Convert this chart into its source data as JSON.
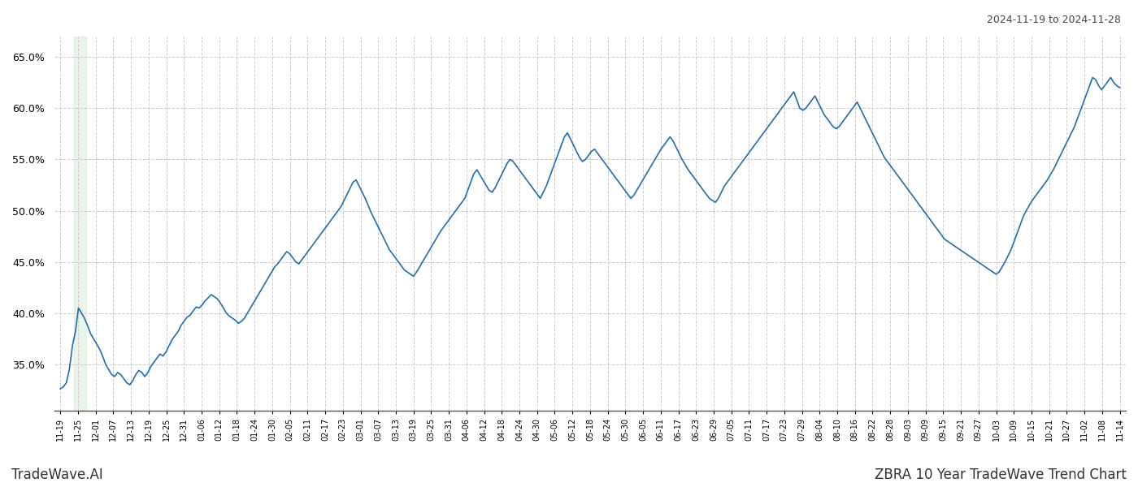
{
  "title_right": "2024-11-19 to 2024-11-28",
  "footer_left": "TradeWave.AI",
  "footer_right": "ZBRA 10 Year TradeWave Trend Chart",
  "line_color": "#1f6eb5",
  "line_width": 1.2,
  "highlight_color": "#c8e6c9",
  "highlight_alpha": 0.4,
  "background_color": "#ffffff",
  "grid_color": "#cccccc",
  "grid_style": "--",
  "ylim": [
    0.305,
    0.67
  ],
  "yticks": [
    0.35,
    0.4,
    0.45,
    0.5,
    0.55,
    0.6,
    0.65
  ],
  "xtick_labels": [
    "11-19",
    "11-25",
    "12-01",
    "12-07",
    "12-13",
    "12-19",
    "12-25",
    "12-31",
    "01-06",
    "01-12",
    "01-18",
    "01-24",
    "01-30",
    "02-05",
    "02-11",
    "02-17",
    "02-23",
    "03-01",
    "03-07",
    "03-13",
    "03-19",
    "03-25",
    "03-31",
    "04-06",
    "04-12",
    "04-18",
    "04-24",
    "04-30",
    "05-06",
    "05-12",
    "05-18",
    "05-24",
    "05-30",
    "06-05",
    "06-11",
    "06-17",
    "06-23",
    "06-29",
    "07-05",
    "07-11",
    "07-17",
    "07-23",
    "07-29",
    "08-04",
    "08-10",
    "08-16",
    "08-22",
    "08-28",
    "09-03",
    "09-09",
    "09-15",
    "09-21",
    "09-27",
    "10-03",
    "10-09",
    "10-15",
    "10-21",
    "10-27",
    "11-02",
    "11-08",
    "11-14"
  ],
  "values": [
    0.326,
    0.328,
    0.332,
    0.345,
    0.368,
    0.382,
    0.405,
    0.4,
    0.395,
    0.388,
    0.38,
    0.375,
    0.37,
    0.365,
    0.358,
    0.35,
    0.345,
    0.34,
    0.338,
    0.342,
    0.34,
    0.336,
    0.332,
    0.33,
    0.334,
    0.34,
    0.344,
    0.342,
    0.338,
    0.342,
    0.348,
    0.352,
    0.356,
    0.36,
    0.358,
    0.362,
    0.368,
    0.374,
    0.378,
    0.382,
    0.388,
    0.392,
    0.396,
    0.398,
    0.402,
    0.406,
    0.405,
    0.408,
    0.412,
    0.415,
    0.418,
    0.416,
    0.414,
    0.41,
    0.405,
    0.4,
    0.397,
    0.395,
    0.393,
    0.39,
    0.392,
    0.395,
    0.4,
    0.405,
    0.41,
    0.415,
    0.42,
    0.425,
    0.43,
    0.435,
    0.44,
    0.445,
    0.448,
    0.452,
    0.456,
    0.46,
    0.458,
    0.454,
    0.45,
    0.448,
    0.452,
    0.456,
    0.46,
    0.464,
    0.468,
    0.472,
    0.476,
    0.48,
    0.484,
    0.488,
    0.492,
    0.496,
    0.5,
    0.504,
    0.51,
    0.516,
    0.522,
    0.528,
    0.53,
    0.524,
    0.518,
    0.512,
    0.505,
    0.498,
    0.492,
    0.486,
    0.48,
    0.474,
    0.468,
    0.462,
    0.458,
    0.454,
    0.45,
    0.446,
    0.442,
    0.44,
    0.438,
    0.436,
    0.44,
    0.445,
    0.45,
    0.455,
    0.46,
    0.465,
    0.47,
    0.475,
    0.48,
    0.484,
    0.488,
    0.492,
    0.496,
    0.5,
    0.504,
    0.508,
    0.512,
    0.52,
    0.528,
    0.536,
    0.54,
    0.535,
    0.53,
    0.525,
    0.52,
    0.518,
    0.522,
    0.528,
    0.534,
    0.54,
    0.546,
    0.55,
    0.548,
    0.544,
    0.54,
    0.536,
    0.532,
    0.528,
    0.524,
    0.52,
    0.516,
    0.512,
    0.518,
    0.524,
    0.532,
    0.54,
    0.548,
    0.556,
    0.564,
    0.572,
    0.576,
    0.57,
    0.564,
    0.558,
    0.552,
    0.548,
    0.55,
    0.554,
    0.558,
    0.56,
    0.556,
    0.552,
    0.548,
    0.544,
    0.54,
    0.536,
    0.532,
    0.528,
    0.524,
    0.52,
    0.516,
    0.512,
    0.515,
    0.52,
    0.525,
    0.53,
    0.535,
    0.54,
    0.545,
    0.55,
    0.555,
    0.56,
    0.564,
    0.568,
    0.572,
    0.568,
    0.562,
    0.556,
    0.55,
    0.545,
    0.54,
    0.536,
    0.532,
    0.528,
    0.524,
    0.52,
    0.516,
    0.512,
    0.51,
    0.508,
    0.512,
    0.518,
    0.524,
    0.528,
    0.532,
    0.536,
    0.54,
    0.544,
    0.548,
    0.552,
    0.556,
    0.56,
    0.564,
    0.568,
    0.572,
    0.576,
    0.58,
    0.584,
    0.588,
    0.592,
    0.596,
    0.6,
    0.604,
    0.608,
    0.612,
    0.616,
    0.608,
    0.6,
    0.598,
    0.6,
    0.604,
    0.608,
    0.612,
    0.606,
    0.6,
    0.594,
    0.59,
    0.586,
    0.582,
    0.58,
    0.582,
    0.586,
    0.59,
    0.594,
    0.598,
    0.602,
    0.606,
    0.6,
    0.594,
    0.588,
    0.582,
    0.576,
    0.57,
    0.564,
    0.558,
    0.552,
    0.548,
    0.544,
    0.54,
    0.536,
    0.532,
    0.528,
    0.524,
    0.52,
    0.516,
    0.512,
    0.508,
    0.504,
    0.5,
    0.496,
    0.492,
    0.488,
    0.484,
    0.48,
    0.476,
    0.472,
    0.47,
    0.468,
    0.466,
    0.464,
    0.462,
    0.46,
    0.458,
    0.456,
    0.454,
    0.452,
    0.45,
    0.448,
    0.446,
    0.444,
    0.442,
    0.44,
    0.438,
    0.44,
    0.445,
    0.45,
    0.456,
    0.462,
    0.47,
    0.478,
    0.486,
    0.494,
    0.5,
    0.505,
    0.51,
    0.514,
    0.518,
    0.522,
    0.526,
    0.53,
    0.535,
    0.54,
    0.546,
    0.552,
    0.558,
    0.564,
    0.57,
    0.576,
    0.582,
    0.59,
    0.598,
    0.606,
    0.614,
    0.622,
    0.63,
    0.628,
    0.622,
    0.618,
    0.622,
    0.626,
    0.63,
    0.625,
    0.622,
    0.62
  ]
}
